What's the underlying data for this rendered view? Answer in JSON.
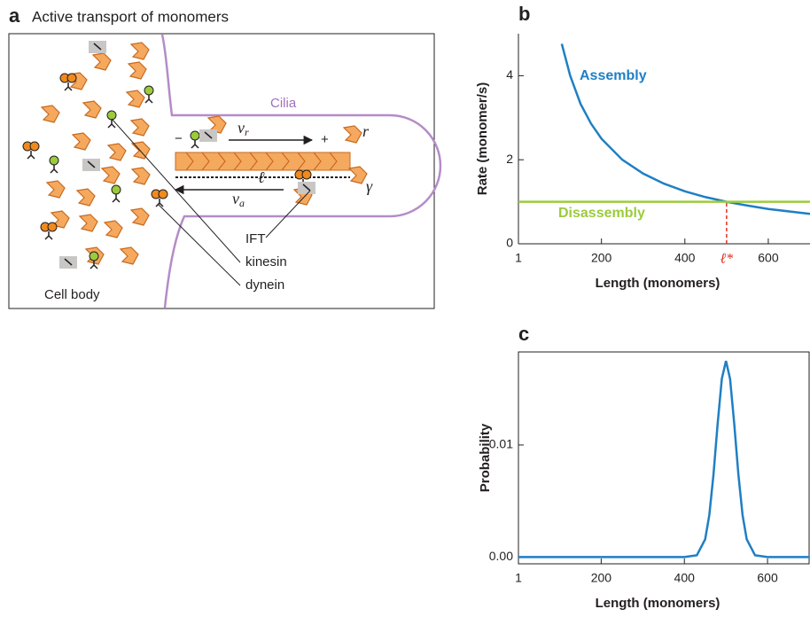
{
  "diagram": {
    "panel_label": "a",
    "title": "Active transport of monomers",
    "cilia": "Cilia",
    "minus": "−",
    "plus": "+",
    "v_r": {
      "symbol": "v",
      "subscript": "r"
    },
    "r": "r",
    "length": "ℓ",
    "gamma": "γ",
    "v_a": {
      "symbol": "v",
      "subscript": "a"
    },
    "labels": [
      "IFT",
      "kinesin",
      "dynein"
    ],
    "cell_body": "Cell body"
  },
  "chart_data": [
    {
      "type": "line",
      "panel_label": "b",
      "x_label": "Length (monomers)",
      "y_label": "Rate (monomer/s)",
      "series": [
        {
          "name": "Assembly",
          "color": "#1f7fc4",
          "x": [
            105,
            125,
            150,
            175,
            200,
            250,
            300,
            350,
            400,
            450,
            500,
            550,
            600,
            650,
            700
          ],
          "values": [
            4.76,
            4.0,
            3.33,
            2.86,
            2.5,
            2.0,
            1.67,
            1.43,
            1.25,
            1.11,
            1.0,
            0.91,
            0.83,
            0.77,
            0.71
          ]
        },
        {
          "name": "Disassembly",
          "color": "#9bcb3c",
          "x": [
            1,
            700
          ],
          "values": [
            1,
            1
          ]
        }
      ],
      "annotations": [
        {
          "x": 500,
          "y": 1,
          "label": "ℓ*",
          "color": "#e03020"
        }
      ],
      "xlim": [
        1,
        700
      ],
      "xticks": [
        1,
        200,
        400,
        600
      ],
      "ylim": [
        0,
        5
      ],
      "yticks": [
        0,
        2,
        4
      ]
    },
    {
      "type": "line",
      "panel_label": "c",
      "x_label": "Length (monomers)",
      "y_label": "Probability",
      "color": "#1f7fc4",
      "x": [
        1,
        400,
        430,
        450,
        460,
        470,
        480,
        490,
        500,
        510,
        520,
        530,
        540,
        550,
        570,
        600,
        700
      ],
      "values": [
        0,
        0,
        0.00016,
        0.00159,
        0.00376,
        0.00737,
        0.0119,
        0.0159,
        0.0175,
        0.0159,
        0.0119,
        0.00737,
        0.00376,
        0.00159,
        0.00016,
        0,
        0
      ],
      "xlim": [
        1,
        700
      ],
      "xticks": [
        1,
        200,
        400,
        600
      ],
      "ylim": [
        -0.0006,
        0.0183
      ],
      "yticks": [
        {
          "value": 0,
          "label": "0.00"
        },
        0.01
      ]
    }
  ]
}
